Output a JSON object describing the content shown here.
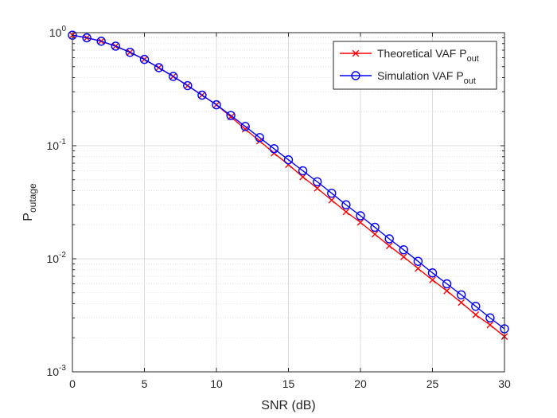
{
  "chart_data": {
    "type": "line",
    "xlabel": "SNR (dB)",
    "ylabel": {
      "base": "P",
      "sub": "outage"
    },
    "xlim": [
      0,
      30
    ],
    "ylim": [
      0.001,
      1
    ],
    "yscale": "log",
    "grid": true,
    "minor_grid": true,
    "legend_position": "top-right",
    "x_ticks": [
      "0",
      "5",
      "10",
      "15",
      "20",
      "25",
      "30"
    ],
    "y_ticks": [
      {
        "base": "10",
        "exp": "-3"
      },
      {
        "base": "10",
        "exp": "-2"
      },
      {
        "base": "10",
        "exp": "-1"
      },
      {
        "base": "10",
        "exp": "0"
      }
    ],
    "x": [
      0,
      1,
      2,
      3,
      4,
      5,
      6,
      7,
      8,
      9,
      10,
      11,
      12,
      13,
      14,
      15,
      16,
      17,
      18,
      19,
      20,
      21,
      22,
      23,
      24,
      25,
      26,
      27,
      28,
      29,
      30
    ],
    "series": [
      {
        "name": "Theoretical VAF P",
        "name_sub": "out",
        "color": "#ff0000",
        "marker": "x",
        "values": [
          0.95,
          0.9,
          0.84,
          0.76,
          0.67,
          0.58,
          0.49,
          0.41,
          0.34,
          0.28,
          0.23,
          0.18,
          0.14,
          0.11,
          0.086,
          0.068,
          0.053,
          0.042,
          0.033,
          0.026,
          0.021,
          0.0165,
          0.013,
          0.0104,
          0.0082,
          0.0065,
          0.0052,
          0.0041,
          0.0032,
          0.0026,
          0.00205
        ]
      },
      {
        "name": "Simulation VAF P",
        "name_sub": "out",
        "color": "#0000ff",
        "marker": "o",
        "values": [
          0.95,
          0.9,
          0.84,
          0.76,
          0.67,
          0.58,
          0.49,
          0.41,
          0.34,
          0.28,
          0.23,
          0.185,
          0.148,
          0.118,
          0.094,
          0.075,
          0.06,
          0.048,
          0.038,
          0.03,
          0.024,
          0.019,
          0.015,
          0.012,
          0.0095,
          0.0075,
          0.006,
          0.0048,
          0.0038,
          0.003,
          0.0024
        ]
      }
    ]
  }
}
